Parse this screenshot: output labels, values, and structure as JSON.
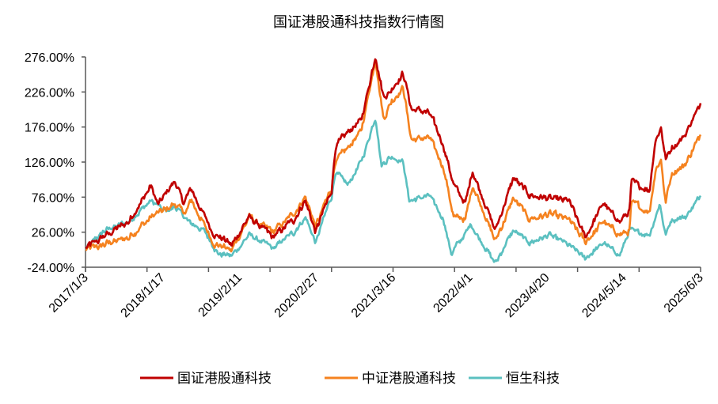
{
  "chart_data": {
    "type": "line",
    "title": "国证港股通科技指数行情图",
    "xlabel": "",
    "ylabel": "",
    "ylim": [
      -24,
      276
    ],
    "y_ticks": [
      "276.00%",
      "226.00%",
      "176.00%",
      "126.00%",
      "76.00%",
      "26.00%",
      "-24.00%"
    ],
    "y_tick_values": [
      276,
      226,
      176,
      126,
      76,
      26,
      -24
    ],
    "x_ticks": [
      "2017/1/3",
      "2018/1/17",
      "2019/2/11",
      "2020/2/27",
      "2021/3/16",
      "2022/4/1",
      "2023/4/20",
      "2024/5/14",
      "2025/6/3"
    ],
    "x_unit": "decimal year",
    "xlim": [
      2017.0,
      2025.42
    ],
    "legend_position": "bottom",
    "grid": false,
    "series": [
      {
        "name": "国证港股通科技",
        "color": "#C00000",
        "points": [
          [
            2017.0,
            3
          ],
          [
            2017.59,
            41
          ],
          [
            2017.9,
            92
          ],
          [
            2017.99,
            63
          ],
          [
            2018.1,
            82
          ],
          [
            2018.23,
            97
          ],
          [
            2018.34,
            67
          ],
          [
            2018.45,
            88
          ],
          [
            2018.59,
            56
          ],
          [
            2018.75,
            26
          ],
          [
            2019.0,
            7
          ],
          [
            2019.24,
            48
          ],
          [
            2019.57,
            18
          ],
          [
            2019.85,
            44
          ],
          [
            2020.01,
            71
          ],
          [
            2020.15,
            26
          ],
          [
            2020.37,
            86
          ],
          [
            2020.42,
            146
          ],
          [
            2020.59,
            169
          ],
          [
            2020.78,
            187
          ],
          [
            2020.97,
            278
          ],
          [
            2021.08,
            218
          ],
          [
            2021.19,
            229
          ],
          [
            2021.35,
            253
          ],
          [
            2021.46,
            202
          ],
          [
            2021.71,
            195
          ],
          [
            2021.9,
            150
          ],
          [
            2022.04,
            93
          ],
          [
            2022.2,
            67
          ],
          [
            2022.3,
            114
          ],
          [
            2022.61,
            29
          ],
          [
            2022.86,
            104
          ],
          [
            2023.08,
            78
          ],
          [
            2023.35,
            74
          ],
          [
            2023.62,
            71
          ],
          [
            2023.84,
            18
          ],
          [
            2024.09,
            67
          ],
          [
            2024.31,
            41
          ],
          [
            2024.45,
            56
          ],
          [
            2024.47,
            97
          ],
          [
            2024.72,
            86
          ],
          [
            2024.8,
            157
          ],
          [
            2024.88,
            176
          ],
          [
            2024.94,
            131
          ],
          [
            2025.02,
            146
          ],
          [
            2025.21,
            165
          ],
          [
            2025.42,
            210
          ]
        ]
      },
      {
        "name": "中证港股通科技",
        "color": "#F5821F",
        "points": [
          [
            2017.0,
            1
          ],
          [
            2017.59,
            18
          ],
          [
            2017.9,
            48
          ],
          [
            2018.1,
            59
          ],
          [
            2018.23,
            67
          ],
          [
            2018.37,
            52
          ],
          [
            2018.45,
            71
          ],
          [
            2018.75,
            11
          ],
          [
            2019.0,
            0
          ],
          [
            2019.24,
            48
          ],
          [
            2019.57,
            26
          ],
          [
            2019.85,
            52
          ],
          [
            2020.01,
            77
          ],
          [
            2020.15,
            33
          ],
          [
            2020.37,
            90
          ],
          [
            2020.42,
            127
          ],
          [
            2020.59,
            146
          ],
          [
            2020.78,
            172
          ],
          [
            2020.97,
            274
          ],
          [
            2021.08,
            187
          ],
          [
            2021.19,
            214
          ],
          [
            2021.35,
            232
          ],
          [
            2021.46,
            157
          ],
          [
            2021.71,
            161
          ],
          [
            2021.9,
            120
          ],
          [
            2022.04,
            48
          ],
          [
            2022.2,
            44
          ],
          [
            2022.3,
            93
          ],
          [
            2022.61,
            14
          ],
          [
            2022.86,
            74
          ],
          [
            2023.08,
            44
          ],
          [
            2023.35,
            52
          ],
          [
            2023.62,
            44
          ],
          [
            2023.84,
            11
          ],
          [
            2024.09,
            41
          ],
          [
            2024.31,
            22
          ],
          [
            2024.45,
            29
          ],
          [
            2024.47,
            67
          ],
          [
            2024.72,
            56
          ],
          [
            2024.8,
            112
          ],
          [
            2024.88,
            131
          ],
          [
            2024.94,
            67
          ],
          [
            2025.02,
            108
          ],
          [
            2025.21,
            123
          ],
          [
            2025.42,
            165
          ]
        ]
      },
      {
        "name": "恒生科技",
        "color": "#5BC0C0",
        "points": [
          [
            2017.0,
            3
          ],
          [
            2017.27,
            29
          ],
          [
            2017.59,
            41
          ],
          [
            2017.9,
            71
          ],
          [
            2018.1,
            56
          ],
          [
            2018.23,
            63
          ],
          [
            2018.37,
            44
          ],
          [
            2018.64,
            26
          ],
          [
            2018.81,
            -4
          ],
          [
            2019.0,
            -8
          ],
          [
            2019.24,
            22
          ],
          [
            2019.57,
            3
          ],
          [
            2019.85,
            26
          ],
          [
            2020.01,
            48
          ],
          [
            2020.15,
            11
          ],
          [
            2020.37,
            78
          ],
          [
            2020.42,
            112
          ],
          [
            2020.59,
            93
          ],
          [
            2020.78,
            127
          ],
          [
            2020.97,
            191
          ],
          [
            2021.05,
            123
          ],
          [
            2021.19,
            134
          ],
          [
            2021.35,
            127
          ],
          [
            2021.43,
            71
          ],
          [
            2021.71,
            78
          ],
          [
            2021.9,
            44
          ],
          [
            2022.01,
            -4
          ],
          [
            2022.28,
            37
          ],
          [
            2022.61,
            -19
          ],
          [
            2022.86,
            29
          ],
          [
            2023.08,
            11
          ],
          [
            2023.35,
            22
          ],
          [
            2023.62,
            7
          ],
          [
            2023.84,
            -12
          ],
          [
            2024.09,
            11
          ],
          [
            2024.31,
            -8
          ],
          [
            2024.45,
            29
          ],
          [
            2024.72,
            22
          ],
          [
            2024.86,
            67
          ],
          [
            2024.94,
            22
          ],
          [
            2025.02,
            44
          ],
          [
            2025.21,
            48
          ],
          [
            2025.42,
            78
          ]
        ]
      }
    ]
  }
}
